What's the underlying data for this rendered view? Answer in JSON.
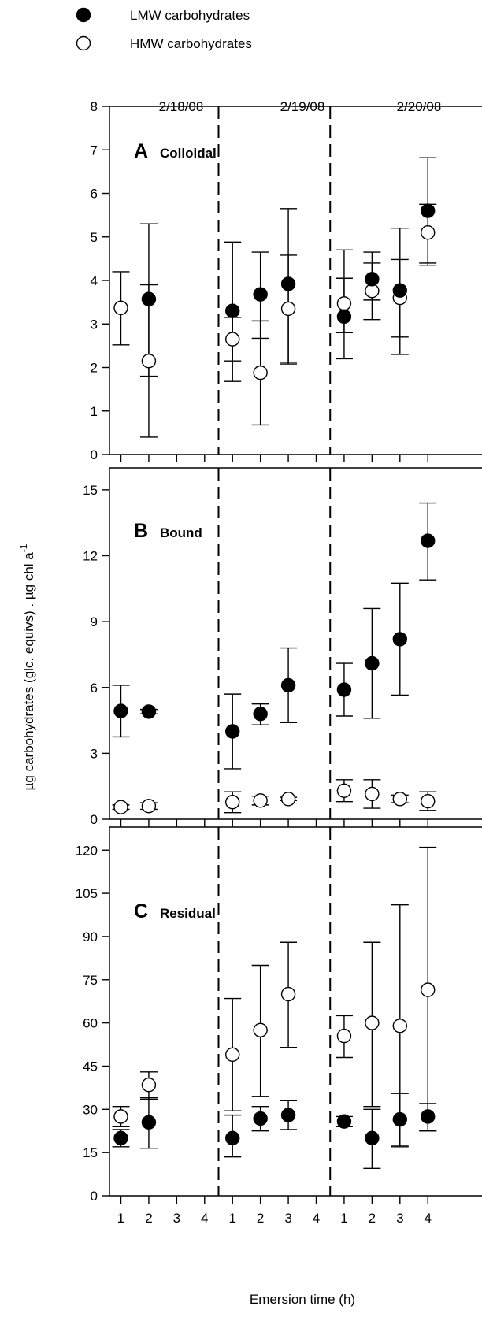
{
  "chart_data": {
    "type": "scatter",
    "legend": {
      "placement": "top-left",
      "entries": [
        {
          "label": "LMW carbohydrates",
          "marker": "filled-circle",
          "color": "#000000"
        },
        {
          "label": "HMW carbohydrates",
          "marker": "open-circle",
          "color": "#000000"
        }
      ]
    },
    "dates": [
      "2/18/08",
      "2/19/08",
      "2/20/08"
    ],
    "xlabel": "Emersion time (h)",
    "ylabel": "µg carbohydrates (glc. equivs) . µg chl a",
    "ylabel_superscript": "-1",
    "x_tick_labels": [
      "1",
      "2",
      "3",
      "4",
      "1",
      "2",
      "3",
      "4",
      "1",
      "2",
      "3",
      "4"
    ],
    "x_range": [
      0.5,
      12.5
    ],
    "separators_after_position": [
      4,
      8
    ],
    "panels": [
      {
        "letter": "A",
        "name": "Colloidal",
        "ylim": [
          0,
          8
        ],
        "y_major_ticks": [
          0,
          1,
          2,
          3,
          4,
          5,
          6,
          7,
          8
        ],
        "series": [
          {
            "name": "LMW carbohydrates",
            "filled": true,
            "points": [
              {
                "x": 2,
                "y": 3.57,
                "lo": 1.8,
                "hi": 5.3
              },
              {
                "x": 5,
                "y": 3.3,
                "lo": 1.68,
                "hi": 4.88
              },
              {
                "x": 6,
                "y": 3.68,
                "lo": 2.67,
                "hi": 4.65
              },
              {
                "x": 7,
                "y": 3.92,
                "lo": 2.12,
                "hi": 5.65
              },
              {
                "x": 9,
                "y": 3.17,
                "lo": 2.2,
                "hi": 4.7
              },
              {
                "x": 10,
                "y": 4.03,
                "lo": 3.55,
                "hi": 4.65
              },
              {
                "x": 11,
                "y": 3.77,
                "lo": 2.3,
                "hi": 5.2
              },
              {
                "x": 12,
                "y": 5.6,
                "lo": 4.35,
                "hi": 6.82
              }
            ]
          },
          {
            "name": "HMW carbohydrates",
            "filled": false,
            "points": [
              {
                "x": 1,
                "y": 3.37,
                "lo": 2.52,
                "hi": 4.2
              },
              {
                "x": 2,
                "y": 2.15,
                "lo": 0.4,
                "hi": 3.9
              },
              {
                "x": 5,
                "y": 2.65,
                "lo": 2.15,
                "hi": 3.15
              },
              {
                "x": 6,
                "y": 1.88,
                "lo": 0.68,
                "hi": 3.07
              },
              {
                "x": 7,
                "y": 3.35,
                "lo": 2.08,
                "hi": 4.58
              },
              {
                "x": 9,
                "y": 3.47,
                "lo": 2.8,
                "hi": 4.05
              },
              {
                "x": 10,
                "y": 3.76,
                "lo": 3.1,
                "hi": 4.4
              },
              {
                "x": 11,
                "y": 3.6,
                "lo": 2.7,
                "hi": 4.48
              },
              {
                "x": 12,
                "y": 5.1,
                "lo": 4.4,
                "hi": 5.75
              }
            ]
          }
        ]
      },
      {
        "letter": "B",
        "name": "Bound",
        "ylim": [
          0,
          16
        ],
        "y_major_ticks": [
          0,
          3,
          6,
          9,
          12,
          15
        ],
        "series": [
          {
            "name": "LMW carbohydrates",
            "filled": true,
            "points": [
              {
                "x": 1,
                "y": 4.93,
                "lo": 3.75,
                "hi": 6.1
              },
              {
                "x": 2,
                "y": 4.9,
                "lo": 4.8,
                "hi": 5.0
              },
              {
                "x": 5,
                "y": 4.0,
                "lo": 2.3,
                "hi": 5.7
              },
              {
                "x": 6,
                "y": 4.8,
                "lo": 4.3,
                "hi": 5.25
              },
              {
                "x": 7,
                "y": 6.1,
                "lo": 4.4,
                "hi": 7.8
              },
              {
                "x": 9,
                "y": 5.9,
                "lo": 4.7,
                "hi": 7.1
              },
              {
                "x": 10,
                "y": 7.1,
                "lo": 4.6,
                "hi": 9.6
              },
              {
                "x": 11,
                "y": 8.2,
                "lo": 5.65,
                "hi": 10.75
              },
              {
                "x": 12,
                "y": 12.68,
                "lo": 10.9,
                "hi": 14.4
              }
            ]
          },
          {
            "name": "HMW carbohydrates",
            "filled": false,
            "points": [
              {
                "x": 1,
                "y": 0.55,
                "lo": 0.45,
                "hi": 0.65
              },
              {
                "x": 2,
                "y": 0.6,
                "lo": 0.45,
                "hi": 0.75
              },
              {
                "x": 5,
                "y": 0.78,
                "lo": 0.3,
                "hi": 1.25
              },
              {
                "x": 6,
                "y": 0.85,
                "lo": 0.65,
                "hi": 1.05
              },
              {
                "x": 7,
                "y": 0.92,
                "lo": 0.85,
                "hi": 1.0
              },
              {
                "x": 9,
                "y": 1.3,
                "lo": 0.8,
                "hi": 1.8
              },
              {
                "x": 10,
                "y": 1.15,
                "lo": 0.5,
                "hi": 1.8
              },
              {
                "x": 11,
                "y": 0.92,
                "lo": 0.75,
                "hi": 1.1
              },
              {
                "x": 12,
                "y": 0.82,
                "lo": 0.4,
                "hi": 1.25
              }
            ]
          }
        ]
      },
      {
        "letter": "C",
        "name": "Residual",
        "ylim": [
          0,
          128
        ],
        "y_major_ticks": [
          0,
          15,
          30,
          45,
          60,
          75,
          90,
          105,
          120
        ],
        "series": [
          {
            "name": "LMW carbohydrates",
            "filled": true,
            "points": [
              {
                "x": 1,
                "y": 20,
                "lo": 17,
                "hi": 23
              },
              {
                "x": 2,
                "y": 25.5,
                "lo": 16.5,
                "hi": 34
              },
              {
                "x": 5,
                "y": 20,
                "lo": 13.5,
                "hi": 28
              },
              {
                "x": 6,
                "y": 26.8,
                "lo": 22.5,
                "hi": 31
              },
              {
                "x": 7,
                "y": 28,
                "lo": 23,
                "hi": 33
              },
              {
                "x": 9,
                "y": 25.8,
                "lo": 24,
                "hi": 27.5
              },
              {
                "x": 10,
                "y": 20,
                "lo": 9.5,
                "hi": 30
              },
              {
                "x": 11,
                "y": 26.5,
                "lo": 17,
                "hi": 35.5
              },
              {
                "x": 12,
                "y": 27.5,
                "lo": 22.5,
                "hi": 32
              }
            ]
          },
          {
            "name": "HMW carbohydrates",
            "filled": false,
            "points": [
              {
                "x": 1,
                "y": 27.5,
                "lo": 24,
                "hi": 31
              },
              {
                "x": 2,
                "y": 38.5,
                "lo": 33.5,
                "hi": 43
              },
              {
                "x": 5,
                "y": 49,
                "lo": 29.5,
                "hi": 68.5
              },
              {
                "x": 6,
                "y": 57.5,
                "lo": 34.5,
                "hi": 80
              },
              {
                "x": 7,
                "y": 70,
                "lo": 51.5,
                "hi": 88
              },
              {
                "x": 9,
                "y": 55.5,
                "lo": 48,
                "hi": 62.5
              },
              {
                "x": 10,
                "y": 60,
                "lo": 31,
                "hi": 88
              },
              {
                "x": 11,
                "y": 59,
                "lo": 17.5,
                "hi": 101
              },
              {
                "x": 12,
                "y": 71.5,
                "lo": 22.5,
                "hi": 121
              }
            ]
          }
        ]
      }
    ]
  }
}
